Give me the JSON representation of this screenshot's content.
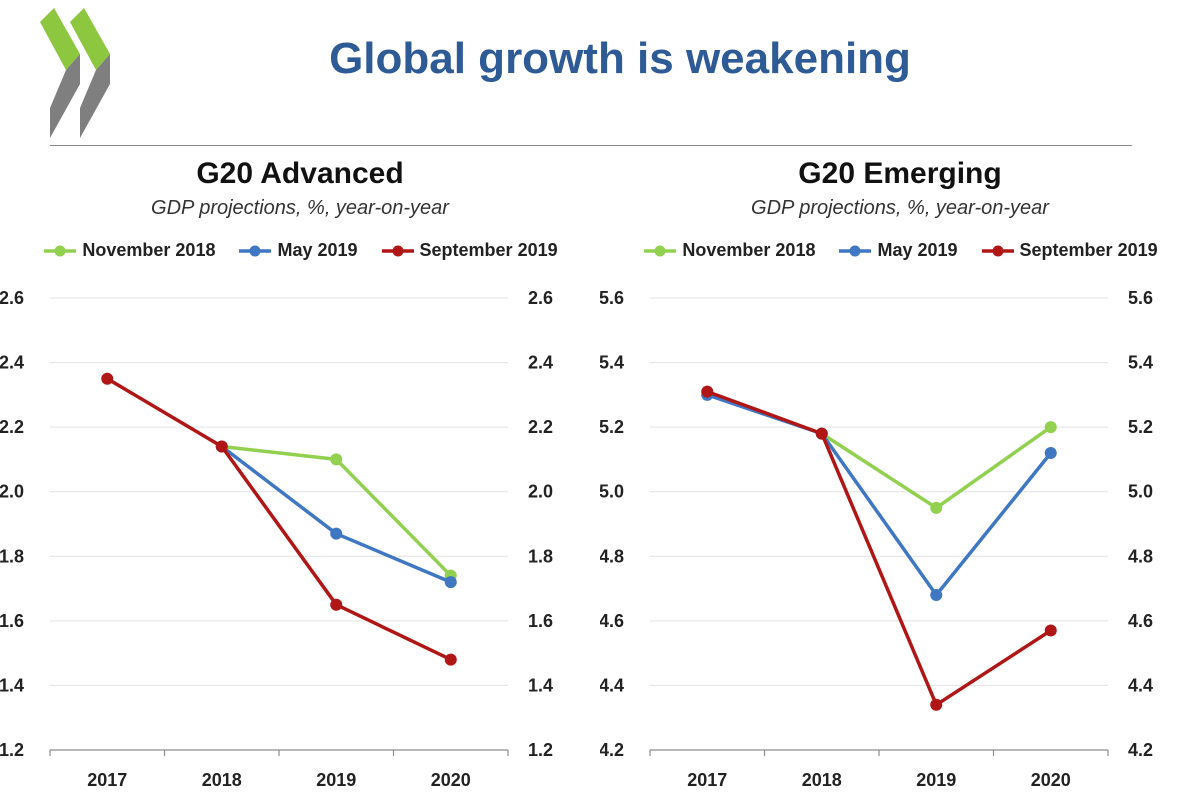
{
  "title": "Global growth is weakening",
  "colors": {
    "title": "#2e5b96",
    "logo_green": "#8dc63f",
    "logo_gray": "#7f7f7f"
  },
  "icons": {
    "logo": "oecd-chevron-logo-icon"
  },
  "chart_data": [
    {
      "type": "line",
      "title": "G20 Advanced",
      "subtitle": "GDP projections, %, year-on-year",
      "categories": [
        "2017",
        "2018",
        "2019",
        "2020"
      ],
      "ylim": [
        1.2,
        2.6
      ],
      "yticks": [
        "1.2",
        "1.4",
        "1.6",
        "1.8",
        "2.0",
        "2.2",
        "2.4",
        "2.6"
      ],
      "grid": true,
      "legend_position": "top",
      "series": [
        {
          "name": "November 2018",
          "color": "#92d050",
          "values": [
            null,
            2.14,
            2.1,
            1.74
          ]
        },
        {
          "name": "May 2019",
          "color": "#3f77c2",
          "values": [
            null,
            2.14,
            1.87,
            1.72
          ]
        },
        {
          "name": "September 2019",
          "color": "#b01616",
          "values": [
            2.35,
            2.14,
            1.65,
            1.48
          ]
        }
      ]
    },
    {
      "type": "line",
      "title": "G20 Emerging",
      "subtitle": "GDP projections, %, year-on-year",
      "categories": [
        "2017",
        "2018",
        "2019",
        "2020"
      ],
      "ylim": [
        4.2,
        5.6
      ],
      "yticks": [
        "4.2",
        "4.4",
        "4.6",
        "4.8",
        "5.0",
        "5.2",
        "5.4",
        "5.6"
      ],
      "grid": true,
      "legend_position": "top",
      "series": [
        {
          "name": "November 2018",
          "color": "#92d050",
          "values": [
            null,
            5.18,
            4.95,
            5.2
          ]
        },
        {
          "name": "May 2019",
          "color": "#3f77c2",
          "values": [
            5.3,
            5.18,
            4.68,
            5.12
          ]
        },
        {
          "name": "September 2019",
          "color": "#b01616",
          "values": [
            5.31,
            5.18,
            4.34,
            4.57
          ]
        }
      ]
    }
  ]
}
